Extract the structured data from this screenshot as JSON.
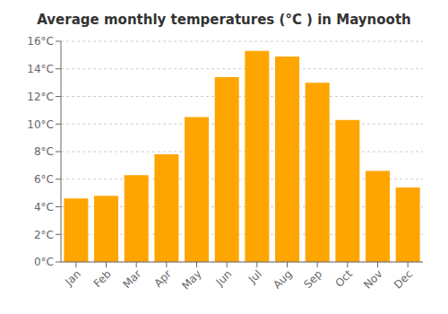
{
  "chart_data": {
    "type": "bar",
    "title": "Average monthly temperatures (°C ) in Maynooth",
    "categories": [
      "Jan",
      "Feb",
      "Mar",
      "Apr",
      "May",
      "Jun",
      "Jul",
      "Aug",
      "Sep",
      "Oct",
      "Nov",
      "Dec"
    ],
    "values": [
      4.6,
      4.8,
      6.3,
      7.8,
      10.5,
      13.4,
      15.3,
      14.9,
      13.0,
      10.3,
      6.6,
      5.4
    ],
    "color": "#FFA500",
    "ylim": [
      0,
      16
    ],
    "yticks": [
      {
        "value": 0,
        "label": "0°C"
      },
      {
        "value": 2,
        "label": "2°C"
      },
      {
        "value": 4,
        "label": "4°C"
      },
      {
        "value": 6,
        "label": "6°C"
      },
      {
        "value": 8,
        "label": "8°C"
      },
      {
        "value": 10,
        "label": "10°C"
      },
      {
        "value": 12,
        "label": "12°C"
      },
      {
        "value": 14,
        "label": "14°C"
      },
      {
        "value": 16,
        "label": "16°C"
      }
    ],
    "grid": true
  }
}
